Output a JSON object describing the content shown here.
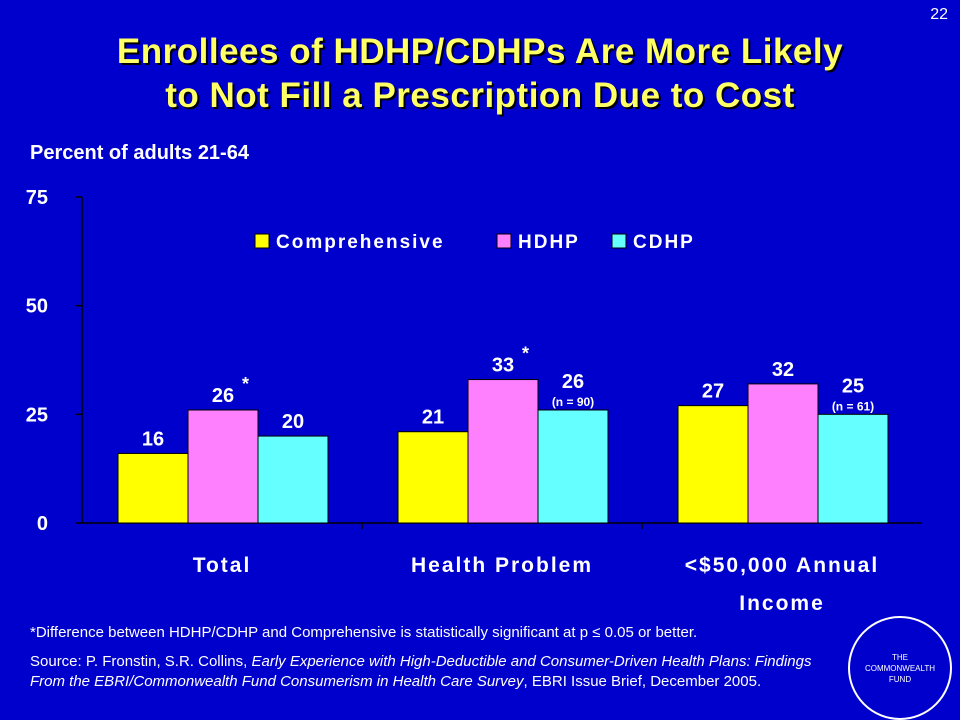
{
  "slide_number": "22",
  "title_lines": [
    "Enrollees of HDHP/CDHPs Are More Likely",
    "to Not Fill a Prescription Due to Cost"
  ],
  "subtitle": "Percent of adults 21-64",
  "footnote": "*Difference between HDHP/CDHP and Comprehensive is statistically significant at p ≤ 0.05 or better.",
  "source": {
    "prefix": "Source: P. Fronstin, S.R. Collins, ",
    "italic": "Early Experience with High-Deductible and Consumer-Driven Health Plans: Findings From the EBRI/Commonwealth Fund Consumerism in Health Care Survey",
    "suffix": ", EBRI Issue Brief, December 2005."
  },
  "logo": {
    "lines": [
      "THE",
      "COMMONWEALTH",
      "FUND"
    ]
  },
  "colors": {
    "background": "#0000cc",
    "title": "#ffff66",
    "comprehensive": "#ffff00",
    "hdhp": "#ff80ff",
    "cdhp": "#66ffff"
  },
  "chart_data": {
    "type": "bar",
    "categories": [
      [
        "Total"
      ],
      [
        "Health Problem"
      ],
      [
        "<$50,000 Annual",
        "Income"
      ]
    ],
    "series": [
      {
        "name": "Comprehensive",
        "values": [
          16,
          21,
          27
        ],
        "labels": [
          "16",
          "21",
          "27"
        ]
      },
      {
        "name": "HDHP",
        "values": [
          26,
          33,
          32
        ],
        "labels": [
          "26",
          "33",
          "32"
        ]
      },
      {
        "name": "CDHP",
        "values": [
          20,
          26,
          25
        ],
        "labels": [
          "20",
          "26",
          "25"
        ]
      }
    ],
    "significance_markers": [
      {
        "category": 0,
        "series": 1,
        "text": "*"
      },
      {
        "category": 1,
        "series": 1,
        "text": "*"
      }
    ],
    "sample_notes": [
      {
        "category": 1,
        "series": 2,
        "text": "(n = 90)"
      },
      {
        "category": 2,
        "series": 2,
        "text": "(n = 61)"
      }
    ],
    "yticks": [
      0,
      25,
      50,
      75
    ],
    "ylim": [
      0,
      75
    ],
    "legend": "top-center",
    "grid": false
  }
}
